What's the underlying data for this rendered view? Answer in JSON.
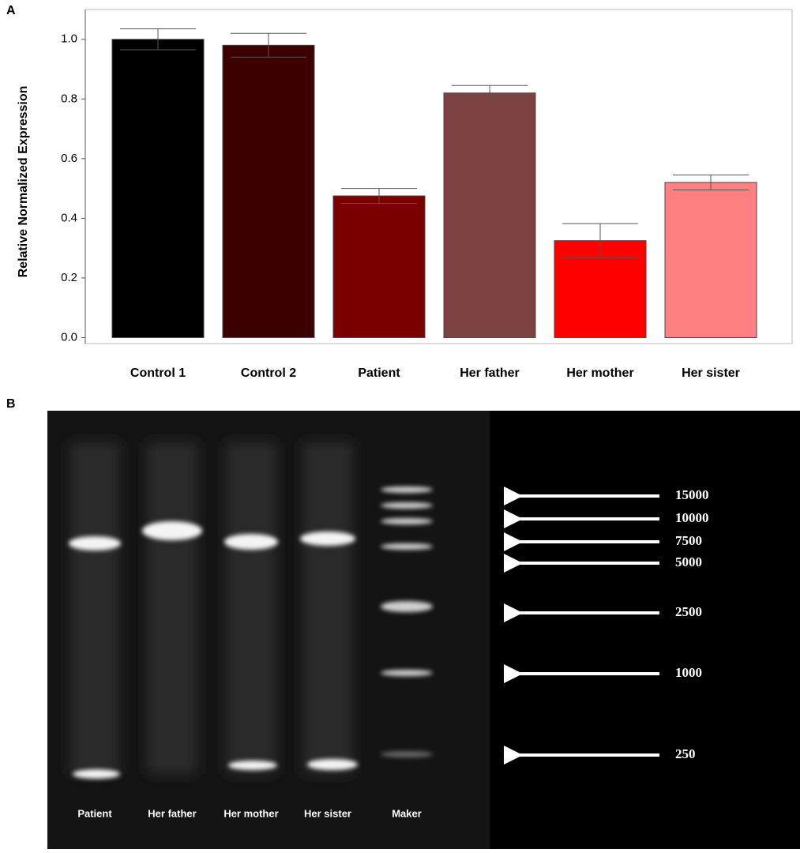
{
  "chart_data": {
    "type": "bar",
    "panel_label": "A",
    "ylabel": "Relative Normalized Expression",
    "categories": [
      "Control 1",
      "Control 2",
      "Patient",
      "Her father",
      "Her mother",
      "Her sister"
    ],
    "values": [
      1.0,
      0.98,
      0.475,
      0.82,
      0.325,
      0.52
    ],
    "errors": [
      0.035,
      0.04,
      0.025,
      0.025,
      0.057,
      0.025
    ],
    "colors": [
      "#000000",
      "#3d0000",
      "#7a0000",
      "#7f4242",
      "#ff0000",
      "#ff8080"
    ],
    "ylim": [
      -0.02,
      1.1
    ],
    "yticks": [
      {
        "value": 0,
        "label": "0.0"
      },
      {
        "value": 0.2,
        "label": "0.2"
      },
      {
        "value": 0.4,
        "label": "0.4"
      },
      {
        "value": 0.6,
        "label": "0.6"
      },
      {
        "value": 0.8,
        "label": "0.8"
      },
      {
        "value": 1,
        "label": "1.0"
      }
    ]
  },
  "gel": {
    "panel_label": "B",
    "lanes": [
      "Patient",
      "Her father",
      "Her mother",
      "Her sister",
      "Maker"
    ],
    "marker_sizes": [
      15000,
      10000,
      7500,
      5000,
      2500,
      1000,
      250
    ]
  }
}
